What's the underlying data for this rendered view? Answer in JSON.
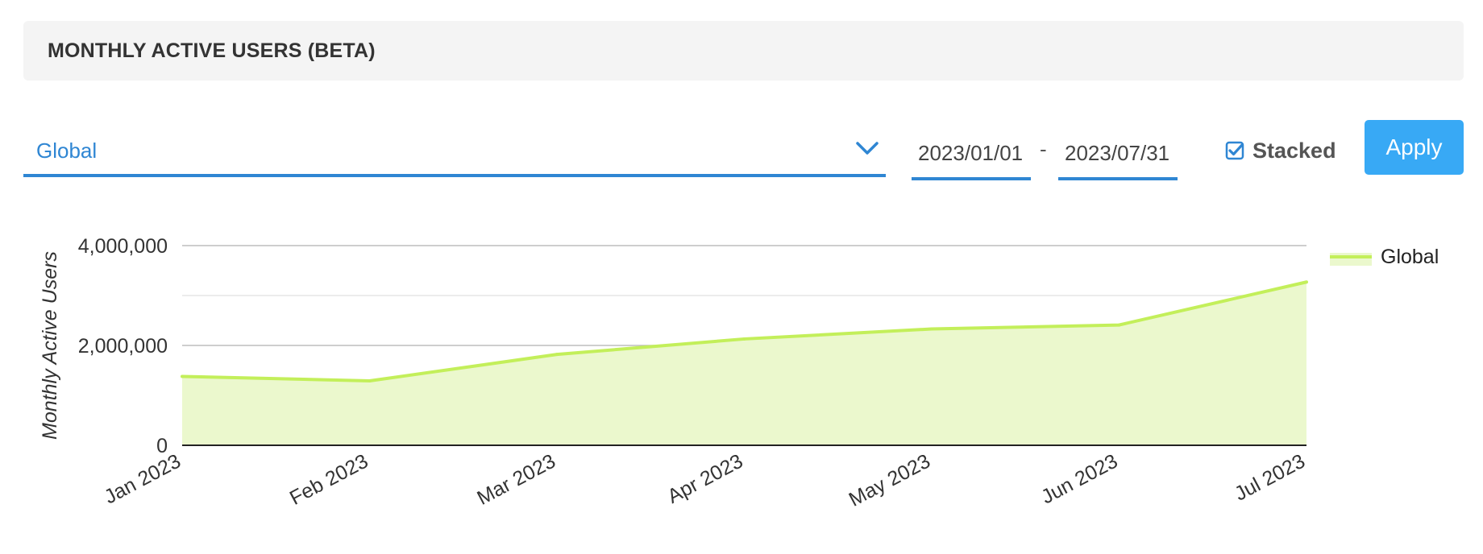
{
  "header": {
    "title": "MONTHLY ACTIVE USERS (BETA)"
  },
  "filters": {
    "region_selected": "Global",
    "date_start": "2023/01/01",
    "date_separator": "-",
    "date_end": "2023/07/31",
    "stacked_label": "Stacked",
    "stacked_checked": true,
    "apply_label": "Apply"
  },
  "colors": {
    "accent": "#2f86d3",
    "button": "#38a9f5",
    "series_line": "#c3ef5a",
    "series_fill": "#ebf8cd"
  },
  "icons": {
    "dropdown": "chevron-down-icon",
    "checkbox": "checkbox-checked-icon"
  },
  "chart_data": {
    "type": "area",
    "title": "",
    "ylabel": "Monthly Active Users",
    "xlabel": "",
    "categories": [
      "Jan 2023",
      "Feb 2023",
      "Mar 2023",
      "Apr 2023",
      "May 2023",
      "Jun 2023",
      "Jul 2023"
    ],
    "series": [
      {
        "name": "Global",
        "values": [
          1380000,
          1290000,
          1820000,
          2130000,
          2330000,
          2410000,
          3270000
        ]
      }
    ],
    "y_ticks": [
      {
        "value": 0,
        "label": "0"
      },
      {
        "value": 2000000,
        "label": "2,000,000"
      },
      {
        "value": 4000000,
        "label": "4,000,000"
      }
    ],
    "ylim": [
      0,
      4000000
    ],
    "grid": true,
    "legend": "right",
    "stacked": true
  }
}
